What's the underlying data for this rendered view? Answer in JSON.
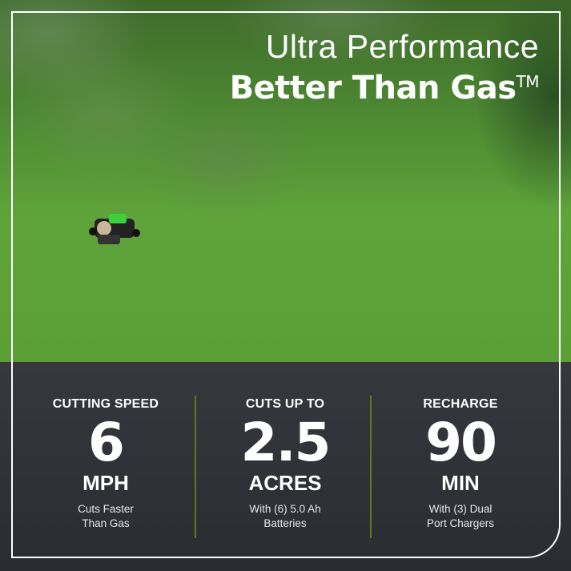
{
  "headline": {
    "line1": "Ultra Performance",
    "line2": "Better Than Gas",
    "trademark": "TM"
  },
  "colors": {
    "divider": "#5d7a1c",
    "panel": "#2e3035",
    "grass": "#5aa036"
  },
  "stats": [
    {
      "label": "CUTTING SPEED",
      "value": "6",
      "unit": "MPH",
      "note_line1": "Cuts Faster",
      "note_line2": "Than Gas"
    },
    {
      "label": "CUTS UP TO",
      "value": "2.5",
      "unit": "ACRES",
      "note_line1": "With (6) 5.0 Ah",
      "note_line2": "Batteries"
    },
    {
      "label": "RECHARGE",
      "value": "90",
      "unit": "MIN",
      "note_line1": "With (3) Dual",
      "note_line2": "Port Chargers"
    }
  ]
}
